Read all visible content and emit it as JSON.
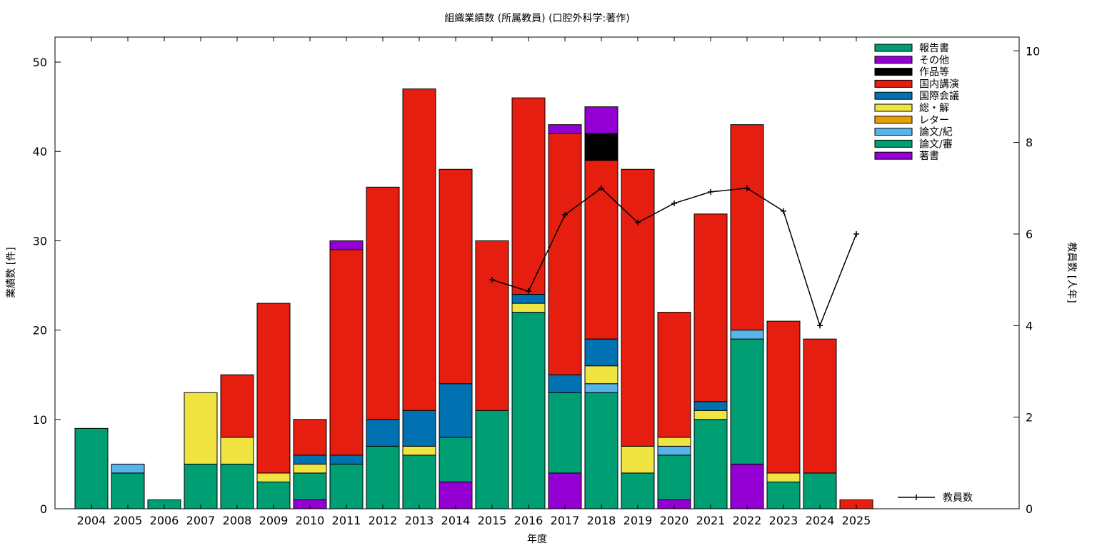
{
  "chart_data": {
    "type": "bar",
    "stacked": true,
    "title": "組織業績数 (所属教員) (口腔外科学:著作)",
    "xlabel": "年度",
    "ylabel": "業績数 [件]",
    "y2label": "教員数 [人年]",
    "ylim": [
      0,
      52.8
    ],
    "y2lim": [
      0,
      10.3
    ],
    "yticks": [
      0,
      10,
      20,
      30,
      40,
      50
    ],
    "y2ticks": [
      0,
      2,
      4,
      6,
      8,
      10
    ],
    "grid": false,
    "legend_position": "top-right",
    "categories": [
      "2004",
      "2005",
      "2006",
      "2007",
      "2008",
      "2009",
      "2010",
      "2011",
      "2012",
      "2013",
      "2014",
      "2015",
      "2016",
      "2017",
      "2018",
      "2019",
      "2020",
      "2021",
      "2022",
      "2023",
      "2024",
      "2025"
    ],
    "series": [
      {
        "name": "著書",
        "color": "#9400d3",
        "values": [
          0,
          0,
          0,
          0,
          0,
          0,
          1,
          0,
          0,
          0,
          3,
          0,
          0,
          4,
          0,
          0,
          1,
          0,
          5,
          0,
          0,
          0
        ]
      },
      {
        "name": "論文/審",
        "color": "#009e73",
        "values": [
          9,
          4,
          1,
          5,
          5,
          3,
          3,
          5,
          7,
          6,
          5,
          11,
          22,
          9,
          13,
          4,
          5,
          10,
          14,
          3,
          4,
          0
        ]
      },
      {
        "name": "論文/紀",
        "color": "#56b4e9",
        "values": [
          0,
          1,
          0,
          0,
          0,
          0,
          0,
          0,
          0,
          0,
          0,
          0,
          0,
          0,
          1,
          0,
          1,
          0,
          1,
          0,
          0,
          0
        ]
      },
      {
        "name": "レター",
        "color": "#e69f00",
        "values": [
          0,
          0,
          0,
          0,
          0,
          0,
          0,
          0,
          0,
          0,
          0,
          0,
          0,
          0,
          0,
          0,
          0,
          0,
          0,
          0,
          0,
          0
        ]
      },
      {
        "name": "総・解",
        "color": "#f0e442",
        "values": [
          0,
          0,
          0,
          8,
          3,
          1,
          1,
          0,
          0,
          1,
          0,
          0,
          1,
          0,
          2,
          3,
          1,
          1,
          0,
          1,
          0,
          0
        ]
      },
      {
        "name": "国際会議",
        "color": "#0072b2",
        "values": [
          0,
          0,
          0,
          0,
          0,
          0,
          1,
          1,
          3,
          4,
          6,
          0,
          1,
          2,
          3,
          0,
          0,
          1,
          0,
          0,
          0,
          0
        ]
      },
      {
        "name": "国内講演",
        "color": "#e51e10",
        "values": [
          0,
          0,
          0,
          0,
          7,
          19,
          4,
          23,
          26,
          36,
          24,
          19,
          22,
          27,
          20,
          31,
          14,
          21,
          23,
          17,
          15,
          1
        ]
      },
      {
        "name": "作品等",
        "color": "#000000",
        "values": [
          0,
          0,
          0,
          0,
          0,
          0,
          0,
          0,
          0,
          0,
          0,
          0,
          0,
          0,
          3,
          0,
          0,
          0,
          0,
          0,
          0,
          0
        ]
      },
      {
        "name": "その他",
        "color": "#9400d3",
        "values": [
          0,
          0,
          0,
          0,
          0,
          0,
          0,
          1,
          0,
          0,
          0,
          0,
          0,
          1,
          3,
          0,
          0,
          0,
          0,
          0,
          0,
          0
        ]
      },
      {
        "name": "報告書",
        "color": "#009e73",
        "values": [
          0,
          0,
          0,
          0,
          0,
          0,
          0,
          0,
          0,
          0,
          0,
          0,
          0,
          0,
          0,
          0,
          0,
          0,
          0,
          0,
          0,
          0
        ]
      }
    ],
    "line_series": {
      "name": "教員数",
      "color": "#000000",
      "axis": "right",
      "x": [
        "2015",
        "2016",
        "2017",
        "2018",
        "2019",
        "2020",
        "2021",
        "2022",
        "2023",
        "2024",
        "2025"
      ],
      "values": [
        5.0,
        4.75,
        6.42,
        7.0,
        6.25,
        6.67,
        6.92,
        7.0,
        6.5,
        4.0,
        6.0
      ]
    }
  }
}
